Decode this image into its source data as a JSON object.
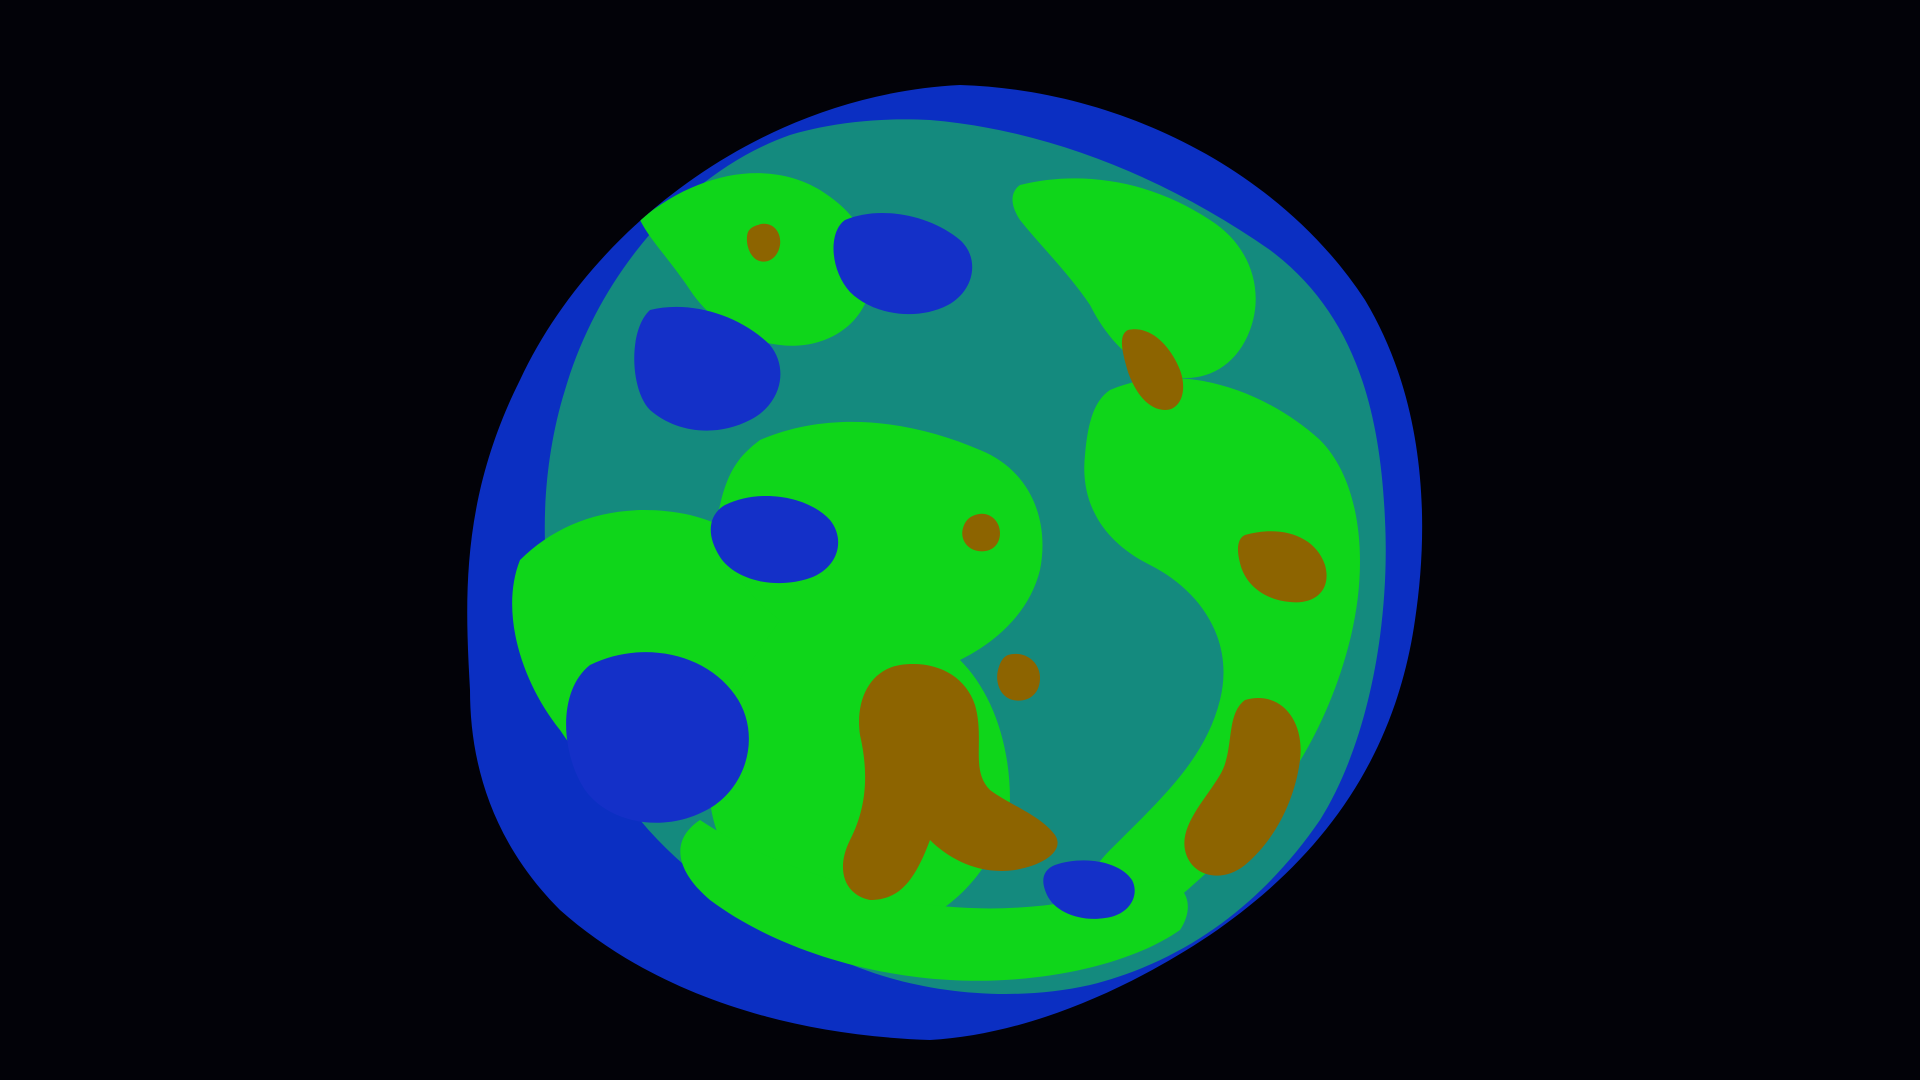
{
  "image": {
    "background_color": "#020208",
    "palette": {
      "outer_rim": "#0b2fc2",
      "deep_blue": "#1430c8",
      "teal": "#148a7e",
      "bright_green": "#0fd61a",
      "brown": "#8d6400"
    }
  }
}
